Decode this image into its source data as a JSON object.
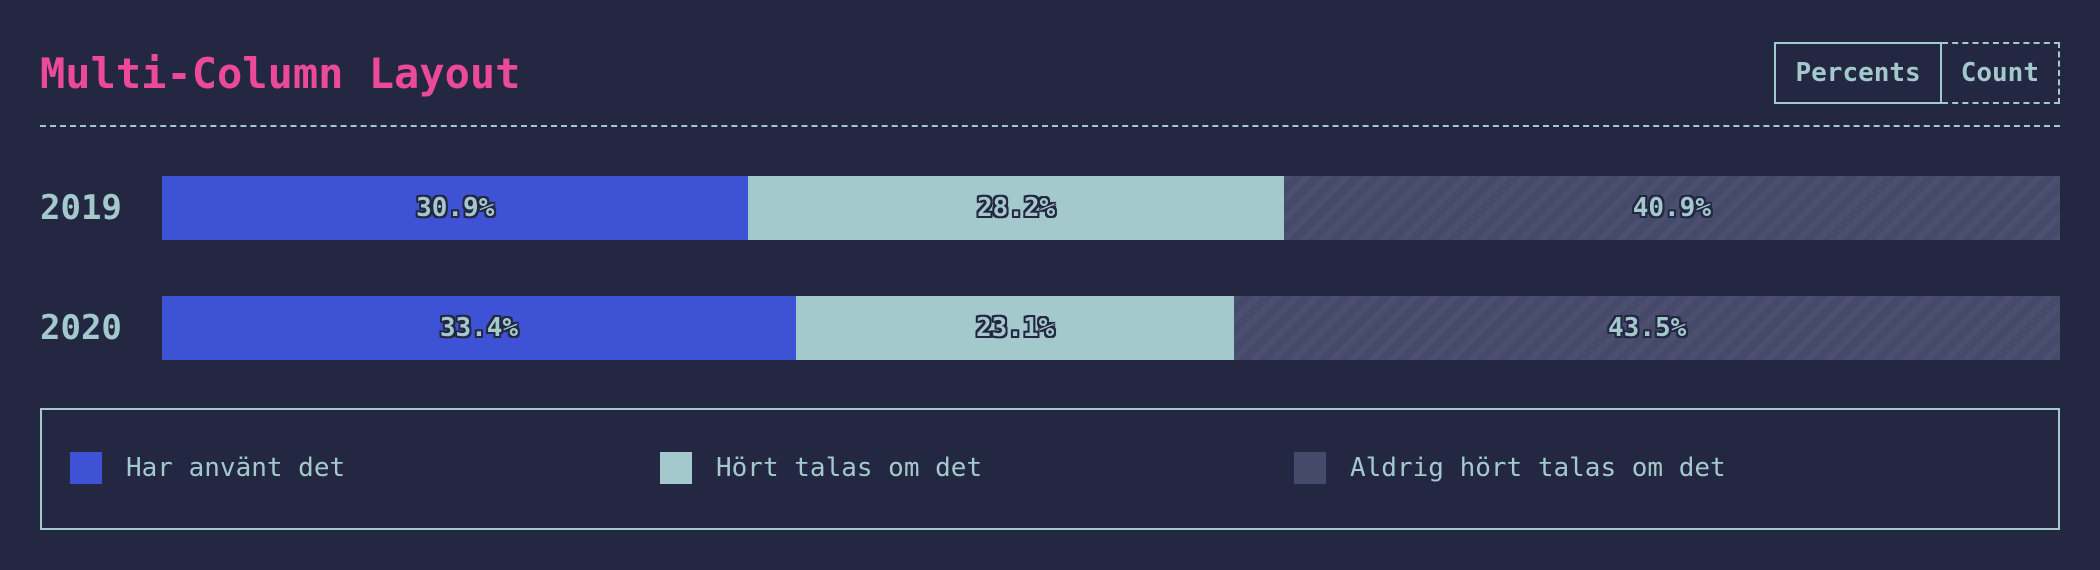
{
  "title": "Multi-Column Layout",
  "toggle": {
    "percents_label": "Percents",
    "count_label": "Count",
    "active": "percents"
  },
  "chart_data": {
    "type": "bar",
    "orientation": "horizontal",
    "stacked": true,
    "normalized": true,
    "categories": [
      "2019",
      "2020"
    ],
    "series": [
      {
        "name": "Har använt det",
        "color": "#3e52d6",
        "values": [
          30.9,
          33.4
        ],
        "labels": [
          "30.9%",
          "33.4%"
        ]
      },
      {
        "name": "Hört talas om det",
        "color": "#a3c9cc",
        "values": [
          28.2,
          23.1
        ],
        "labels": [
          "28.2%",
          "23.1%"
        ]
      },
      {
        "name": "Aldrig hört talas om det",
        "color": "#45496a",
        "values": [
          40.9,
          43.5
        ],
        "labels": [
          "40.9%",
          "43.5%"
        ]
      }
    ],
    "legend_position": "bottom"
  }
}
